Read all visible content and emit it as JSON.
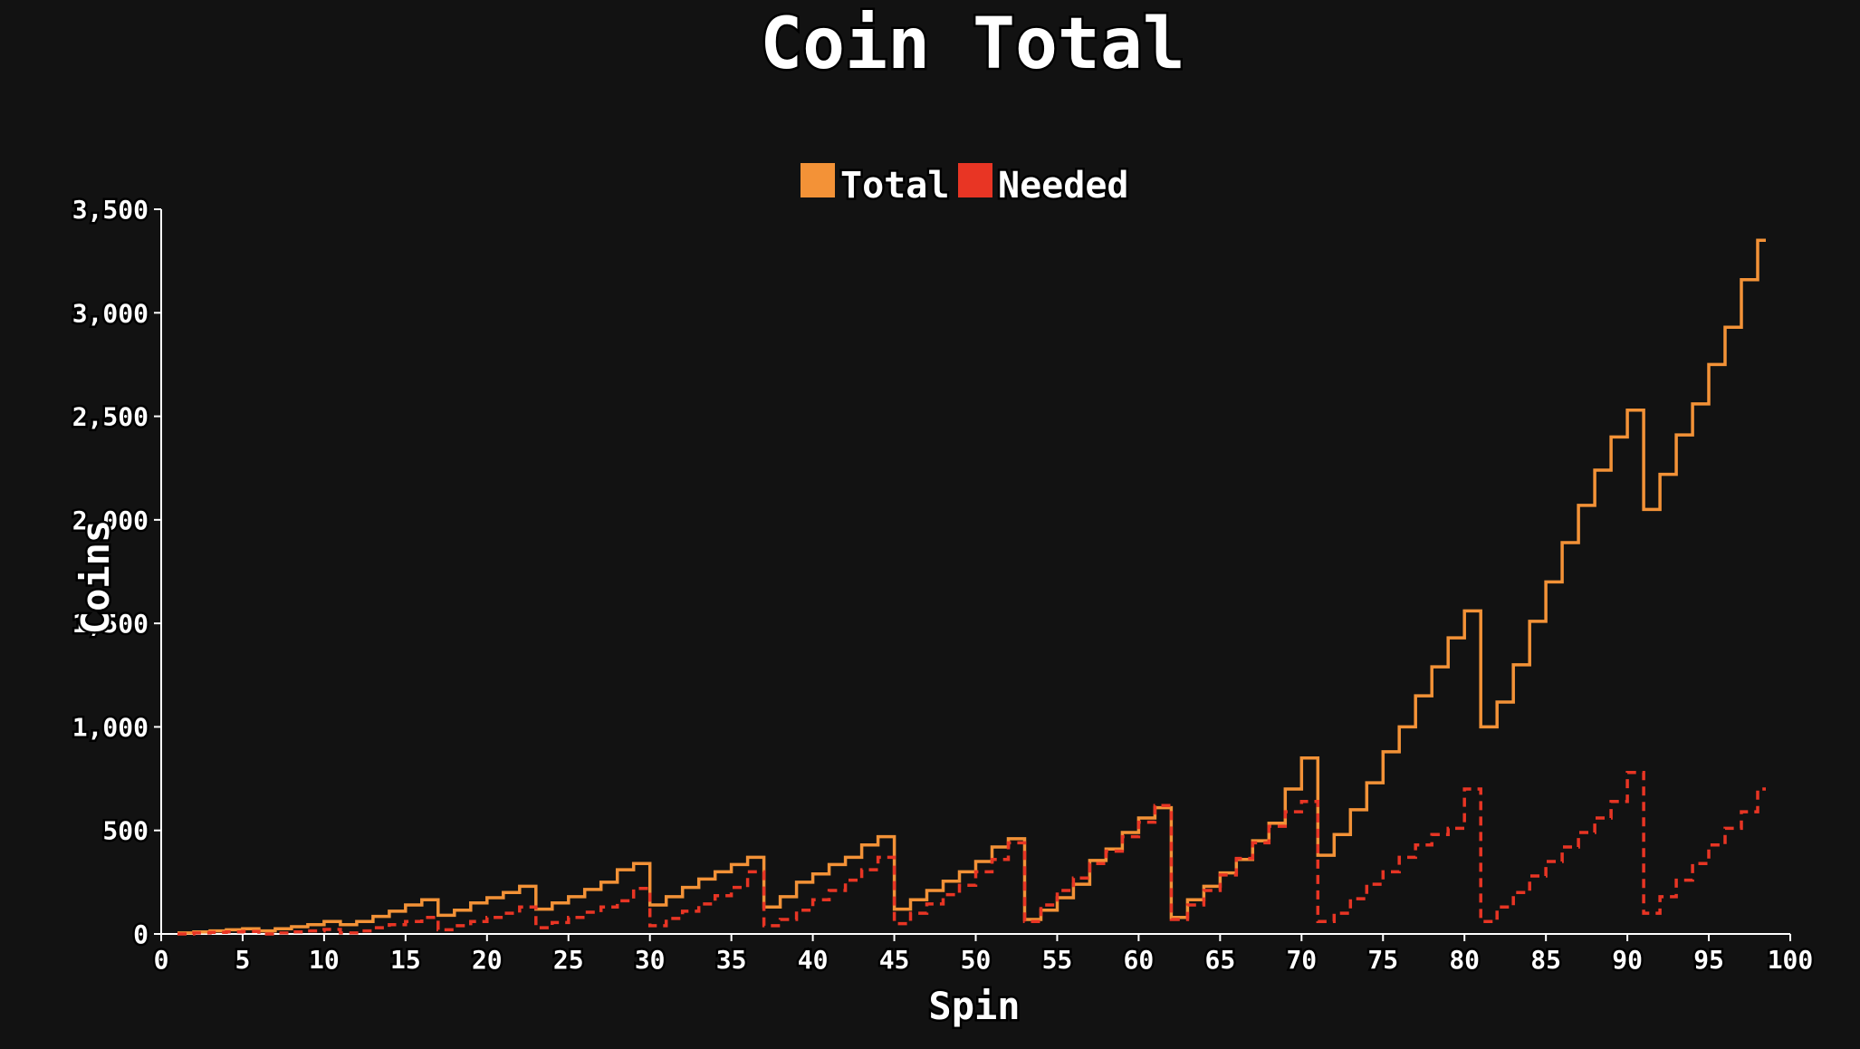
{
  "chart_data": {
    "type": "line",
    "step": true,
    "title": "Coin Total",
    "xlabel": "Spin",
    "ylabel": "Coins",
    "xlim": [
      0,
      100
    ],
    "ylim": [
      0,
      3500
    ],
    "x_ticks": [
      0,
      5,
      10,
      15,
      20,
      25,
      30,
      35,
      40,
      45,
      50,
      55,
      60,
      65,
      70,
      75,
      80,
      85,
      90,
      95,
      100
    ],
    "x_tick_labels": [
      "0",
      "5",
      "10",
      "15",
      "20",
      "25",
      "30",
      "35",
      "40",
      "45",
      "50",
      "55",
      "60",
      "65",
      "70",
      "75",
      "80",
      "85",
      "90",
      "95",
      "100"
    ],
    "y_ticks": [
      0,
      500,
      1000,
      1500,
      2000,
      2500,
      3000,
      3500
    ],
    "y_tick_labels": [
      "0",
      "500",
      "1,000",
      "1,500",
      "2,000",
      "2,500",
      "3,000",
      "3,500"
    ],
    "grid": false,
    "legend": "top-center",
    "background": "#121212",
    "series": [
      {
        "name": "Total",
        "color": "#f39237",
        "style": "solid",
        "x": [
          1,
          2,
          3,
          4,
          5,
          6,
          7,
          8,
          9,
          10,
          11,
          12,
          13,
          14,
          15,
          16,
          17,
          18,
          19,
          20,
          21,
          22,
          23,
          24,
          25,
          26,
          27,
          28,
          29,
          30,
          31,
          32,
          33,
          34,
          35,
          36,
          37,
          38,
          39,
          40,
          41,
          42,
          43,
          44,
          45,
          46,
          47,
          48,
          49,
          50,
          51,
          52,
          53,
          54,
          55,
          56,
          57,
          58,
          59,
          60,
          61,
          62,
          63,
          64,
          65,
          66,
          67,
          68,
          69,
          70,
          71,
          72,
          73,
          74,
          75,
          76,
          77,
          78,
          79,
          80,
          81,
          82,
          83,
          84,
          85,
          86,
          87,
          88,
          89,
          90,
          91,
          92,
          93,
          94,
          95,
          96,
          97,
          98
        ],
        "y": [
          5,
          10,
          15,
          20,
          25,
          15,
          25,
          35,
          45,
          60,
          45,
          60,
          85,
          110,
          140,
          165,
          90,
          115,
          150,
          175,
          200,
          230,
          120,
          150,
          180,
          215,
          250,
          310,
          340,
          140,
          180,
          225,
          265,
          300,
          335,
          370,
          130,
          180,
          250,
          290,
          335,
          370,
          430,
          470,
          120,
          165,
          210,
          255,
          300,
          350,
          420,
          460,
          70,
          115,
          175,
          240,
          355,
          410,
          490,
          560,
          610,
          80,
          165,
          230,
          295,
          360,
          450,
          535,
          700,
          850,
          380,
          480,
          600,
          730,
          880,
          1000,
          1150,
          1290,
          1430,
          1560,
          1000,
          1120,
          1300,
          1510,
          1700,
          1890,
          2070,
          2240,
          2400,
          2530,
          2050,
          2220,
          2410,
          2560,
          2750,
          2930,
          3160,
          3350
        ]
      },
      {
        "name": "Needed",
        "color": "#e83524",
        "style": "dashed",
        "x": [
          1,
          2,
          3,
          4,
          5,
          6,
          7,
          8,
          9,
          10,
          11,
          12,
          13,
          14,
          15,
          16,
          17,
          18,
          19,
          20,
          21,
          22,
          23,
          24,
          25,
          26,
          27,
          28,
          29,
          30,
          31,
          32,
          33,
          34,
          35,
          36,
          37,
          38,
          39,
          40,
          41,
          42,
          43,
          44,
          45,
          46,
          47,
          48,
          49,
          50,
          51,
          52,
          53,
          54,
          55,
          56,
          57,
          58,
          59,
          60,
          61,
          62,
          63,
          64,
          65,
          66,
          67,
          68,
          69,
          70,
          71,
          72,
          73,
          74,
          75,
          76,
          77,
          78,
          79,
          80,
          81,
          82,
          83,
          84,
          85,
          86,
          87,
          88,
          89,
          90,
          91,
          92,
          93,
          94,
          95,
          96,
          97,
          98
        ],
        "y": [
          0,
          5,
          8,
          10,
          12,
          0,
          5,
          10,
          15,
          22,
          5,
          15,
          30,
          45,
          60,
          80,
          20,
          40,
          60,
          80,
          100,
          130,
          30,
          55,
          80,
          105,
          130,
          160,
          220,
          40,
          75,
          110,
          145,
          185,
          225,
          300,
          40,
          70,
          115,
          165,
          210,
          260,
          310,
          370,
          50,
          100,
          145,
          190,
          235,
          300,
          360,
          440,
          60,
          140,
          210,
          270,
          340,
          400,
          470,
          540,
          620,
          70,
          140,
          210,
          285,
          365,
          440,
          520,
          590,
          640,
          60,
          100,
          170,
          240,
          300,
          370,
          430,
          480,
          510,
          700,
          60,
          130,
          200,
          280,
          350,
          420,
          490,
          560,
          640,
          780,
          100,
          180,
          260,
          340,
          430,
          510,
          590,
          700
        ]
      }
    ]
  }
}
